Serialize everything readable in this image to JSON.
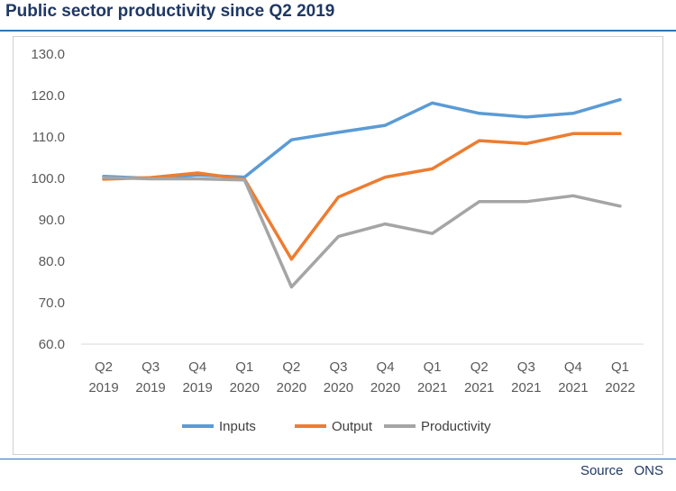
{
  "title": "Public sector productivity since Q2 2019",
  "source": {
    "label": "Source",
    "value": "ONS"
  },
  "chart_data": {
    "type": "line",
    "title": "Public sector productivity since Q2 2019",
    "xlabel": "",
    "ylabel": "",
    "categories": [
      [
        "Q2",
        "2019"
      ],
      [
        "Q3",
        "2019"
      ],
      [
        "Q4",
        "2019"
      ],
      [
        "Q1",
        "2020"
      ],
      [
        "Q2",
        "2020"
      ],
      [
        "Q3",
        "2020"
      ],
      [
        "Q4",
        "2020"
      ],
      [
        "Q1",
        "2021"
      ],
      [
        "Q2",
        "2021"
      ],
      [
        "Q3",
        "2021"
      ],
      [
        "Q4",
        "2021"
      ],
      [
        "Q1",
        "2022"
      ]
    ],
    "ylim": [
      60,
      130
    ],
    "yticks": [
      "60.0",
      "70.0",
      "80.0",
      "90.0",
      "100.0",
      "110.0",
      "120.0",
      "130.0"
    ],
    "grid": false,
    "legend_position": "bottom",
    "series": [
      {
        "name": "Inputs",
        "color": "#5b9bd5",
        "values": [
          100.5,
          100.0,
          100.8,
          100.3,
          109.3,
          111.1,
          112.8,
          118.2,
          115.7,
          114.8,
          115.7,
          119.0
        ]
      },
      {
        "name": "Output",
        "color": "#ed7d31",
        "values": [
          99.8,
          100.2,
          101.3,
          99.8,
          80.5,
          95.5,
          100.3,
          102.3,
          109.1,
          108.4,
          110.8,
          110.8
        ]
      },
      {
        "name": "Productivity",
        "color": "#a5a5a5",
        "values": [
          100.2,
          99.9,
          99.9,
          99.6,
          73.8,
          86.0,
          89.0,
          86.7,
          94.4,
          94.4,
          95.8,
          93.3
        ]
      }
    ]
  }
}
